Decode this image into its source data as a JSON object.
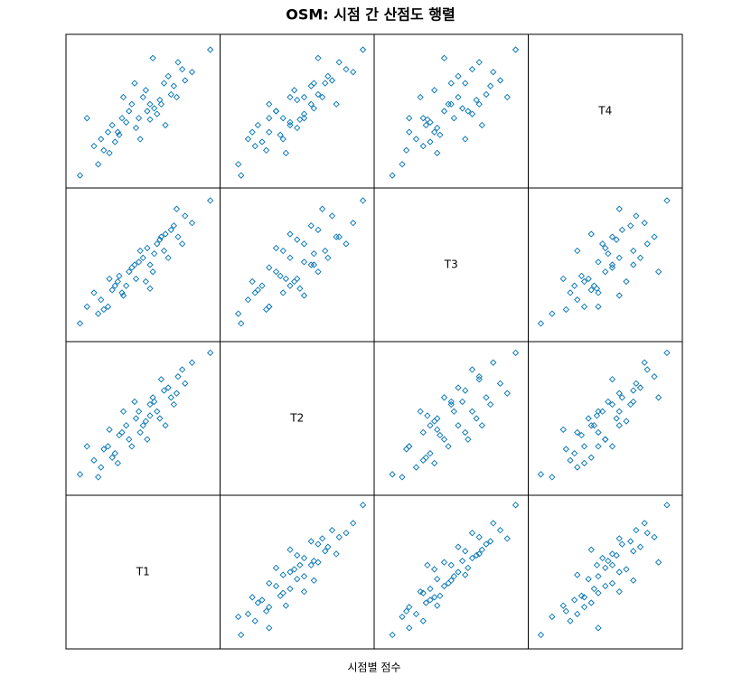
{
  "chart_data": {
    "type": "splom",
    "title": "OSM: 시점 간 산점도 행렬",
    "xlabel": "시점별 점수",
    "color": "#0072b2",
    "variables": [
      {
        "name": "T1",
        "lim": [
          -5,
          105
        ],
        "values": [
          98,
          5,
          20,
          25,
          30,
          35,
          40,
          45,
          50,
          55,
          60,
          65,
          70,
          75,
          80,
          85,
          15,
          22,
          28,
          33,
          38,
          42,
          47,
          52,
          58,
          62,
          68,
          72,
          78,
          10,
          18,
          48,
          57,
          66,
          36,
          44,
          53,
          26,
          63,
          32,
          74,
          55
        ]
      },
      {
        "name": "T2",
        "lim": [
          -5,
          105
        ],
        "values": [
          97,
          10,
          15,
          30,
          25,
          40,
          35,
          50,
          45,
          60,
          55,
          70,
          65,
          80,
          75,
          90,
          20,
          28,
          22,
          38,
          45,
          30,
          55,
          48,
          62,
          50,
          72,
          60,
          85,
          30,
          8,
          40,
          65,
          45,
          55,
          62,
          35,
          42,
          78,
          18,
          68,
          52
        ]
      },
      {
        "name": "T3",
        "lim": [
          -5,
          105
        ],
        "values": [
          96,
          8,
          25,
          20,
          35,
          30,
          45,
          40,
          55,
          50,
          65,
          60,
          75,
          70,
          85,
          80,
          30,
          18,
          32,
          42,
          35,
          48,
          52,
          38,
          58,
          68,
          55,
          78,
          65,
          20,
          15,
          60,
          45,
          72,
          28,
          50,
          62,
          40,
          70,
          38,
          90,
          33
        ]
      },
      {
        "name": "T4",
        "lim": [
          -5,
          105
        ],
        "values": [
          94,
          4,
          30,
          35,
          28,
          45,
          50,
          38,
          60,
          55,
          48,
          70,
          62,
          85,
          72,
          78,
          25,
          22,
          40,
          33,
          42,
          55,
          45,
          65,
          52,
          58,
          75,
          68,
          80,
          45,
          12,
          30,
          88,
          40,
          60,
          70,
          50,
          20,
          55,
          35,
          60,
          44
        ]
      }
    ]
  }
}
